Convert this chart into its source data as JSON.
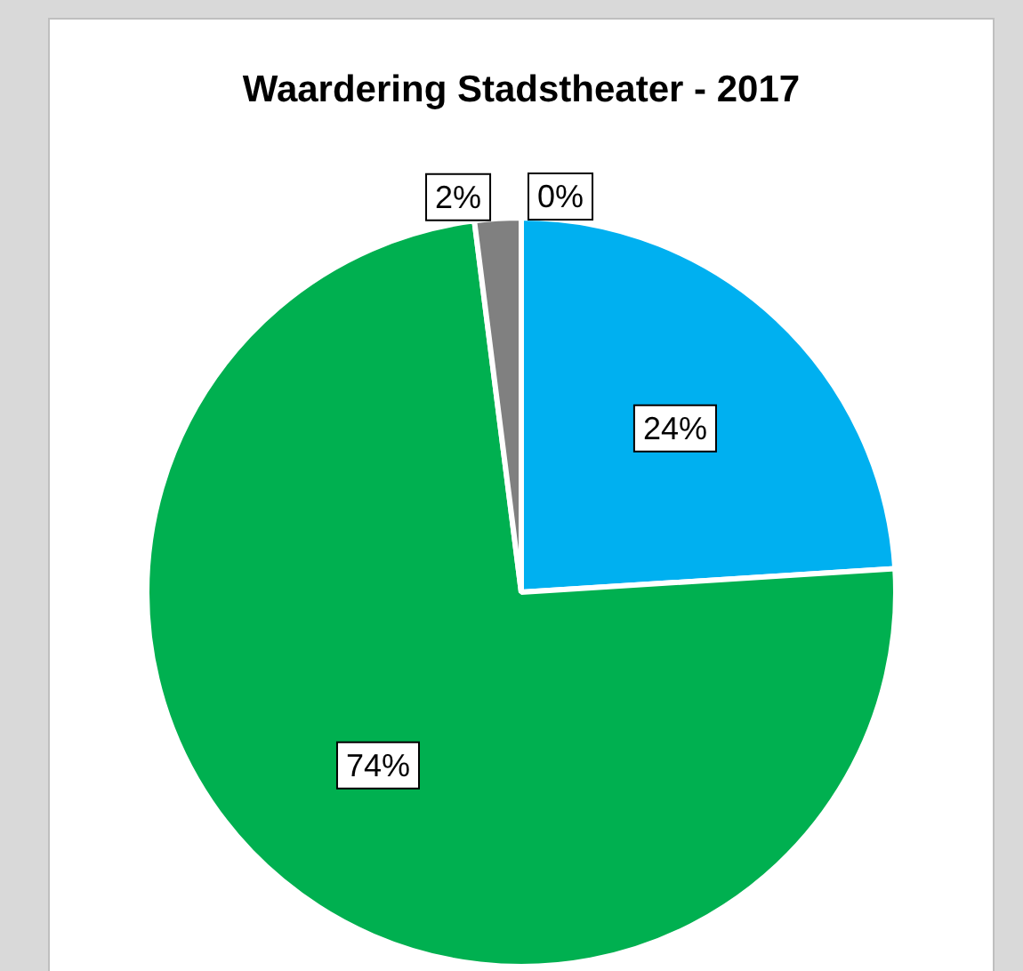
{
  "chart_data": {
    "type": "pie",
    "title": "Waardering Stadstheater - 2017",
    "categories": [
      null,
      null,
      null,
      null
    ],
    "values": [
      24,
      74,
      2,
      0
    ],
    "colors": [
      "#00b0f0",
      "#00b050",
      "#808080",
      "#d9d9d9"
    ],
    "value_labels": [
      "24%",
      "74%",
      "2%",
      "0%"
    ],
    "legend": false
  }
}
